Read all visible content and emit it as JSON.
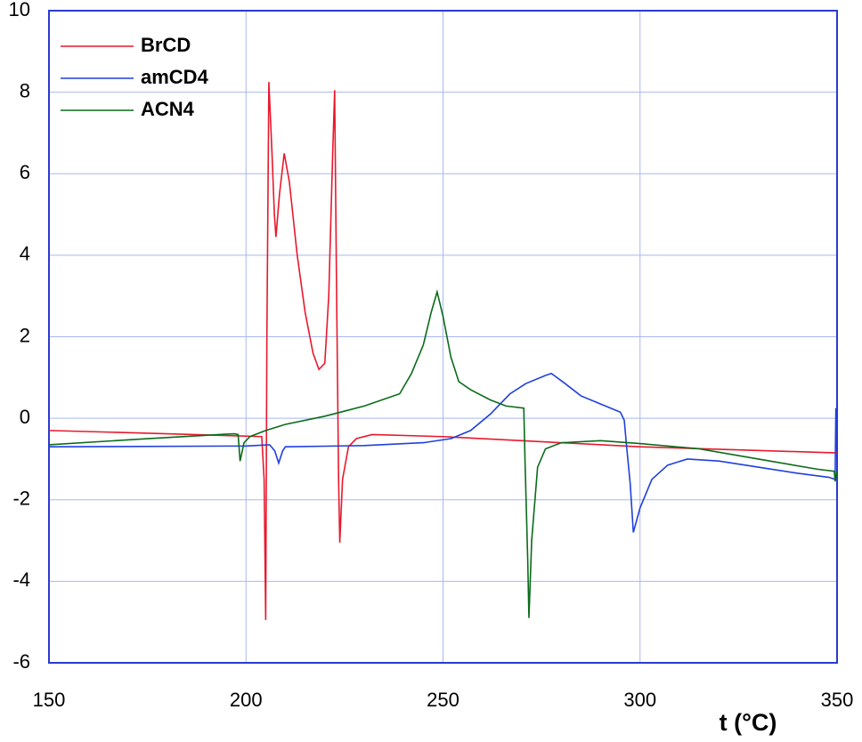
{
  "chart_data": {
    "type": "line",
    "x_label": "t (°C)",
    "xlim": [
      150,
      350
    ],
    "xticks": [
      150,
      200,
      250,
      300,
      350
    ],
    "ylim": [
      -6,
      10
    ],
    "yticks": [
      -6,
      -4,
      -2,
      0,
      2,
      4,
      6,
      8,
      10
    ],
    "grid": true,
    "legend": "upper left",
    "series": [
      {
        "name": "BrCD",
        "color": "#e8192c",
        "x": [
          150,
          180,
          204,
          204.6,
          205,
          205.3,
          205.8,
          206.6,
          207.2,
          207.6,
          208.5,
          209.7,
          211,
          213,
          215,
          217,
          218.5,
          220,
          221,
          222,
          222.5,
          223,
          223.5,
          223.8,
          224.5,
          226,
          228,
          232,
          250,
          270,
          300,
          350
        ],
        "values": [
          -0.3,
          -0.38,
          -0.45,
          -1.5,
          -4.95,
          2,
          8.25,
          6.5,
          5,
          4.45,
          5.5,
          6.5,
          5.8,
          4,
          2.6,
          1.6,
          1.2,
          1.35,
          3,
          6.5,
          8.05,
          3,
          -1.5,
          -3.05,
          -1.5,
          -0.7,
          -0.5,
          -0.4,
          -0.45,
          -0.55,
          -0.7,
          -0.85
        ]
      },
      {
        "name": "amCD4",
        "color": "#1f3fe0",
        "x": [
          150,
          200,
          206,
          207.3,
          208.3,
          209.3,
          210,
          230,
          245,
          252,
          257,
          262,
          267,
          271,
          276,
          277.5,
          281,
          285,
          290,
          295,
          296,
          296.5,
          297.5,
          298.3,
          300,
          303,
          307,
          312,
          320,
          330,
          340,
          348,
          349.5,
          349.7,
          350
        ],
        "values": [
          -0.7,
          -0.68,
          -0.65,
          -0.8,
          -1.1,
          -0.8,
          -0.7,
          -0.67,
          -0.6,
          -0.5,
          -0.3,
          0.1,
          0.6,
          0.85,
          1.05,
          1.1,
          0.85,
          0.55,
          0.35,
          0.15,
          -0.05,
          -0.6,
          -1.6,
          -2.8,
          -2.2,
          -1.5,
          -1.15,
          -1.0,
          -1.05,
          -1.2,
          -1.35,
          -1.45,
          -1.5,
          0.25,
          -0.3
        ]
      },
      {
        "name": "ACN4",
        "color": "#0a6b1a",
        "x": [
          150,
          175,
          197,
          198,
          198.5,
          199.5,
          201,
          205,
          210,
          220,
          230,
          239,
          242,
          245,
          247,
          248.5,
          250,
          252,
          254,
          257,
          262,
          266,
          270.5,
          270.8,
          271.5,
          271.8,
          272.5,
          274,
          276,
          280,
          290,
          300,
          315,
          330,
          345,
          349.3,
          349.5,
          350
        ],
        "values": [
          -0.65,
          -0.5,
          -0.38,
          -0.4,
          -1.05,
          -0.6,
          -0.45,
          -0.3,
          -0.15,
          0.05,
          0.3,
          0.6,
          1.1,
          1.8,
          2.6,
          3.1,
          2.5,
          1.5,
          0.9,
          0.7,
          0.45,
          0.3,
          0.25,
          -1,
          -3.5,
          -4.9,
          -3,
          -1.2,
          -0.75,
          -0.6,
          -0.55,
          -0.62,
          -0.75,
          -1.0,
          -1.25,
          -1.3,
          -1.55,
          -1.3
        ]
      }
    ]
  }
}
